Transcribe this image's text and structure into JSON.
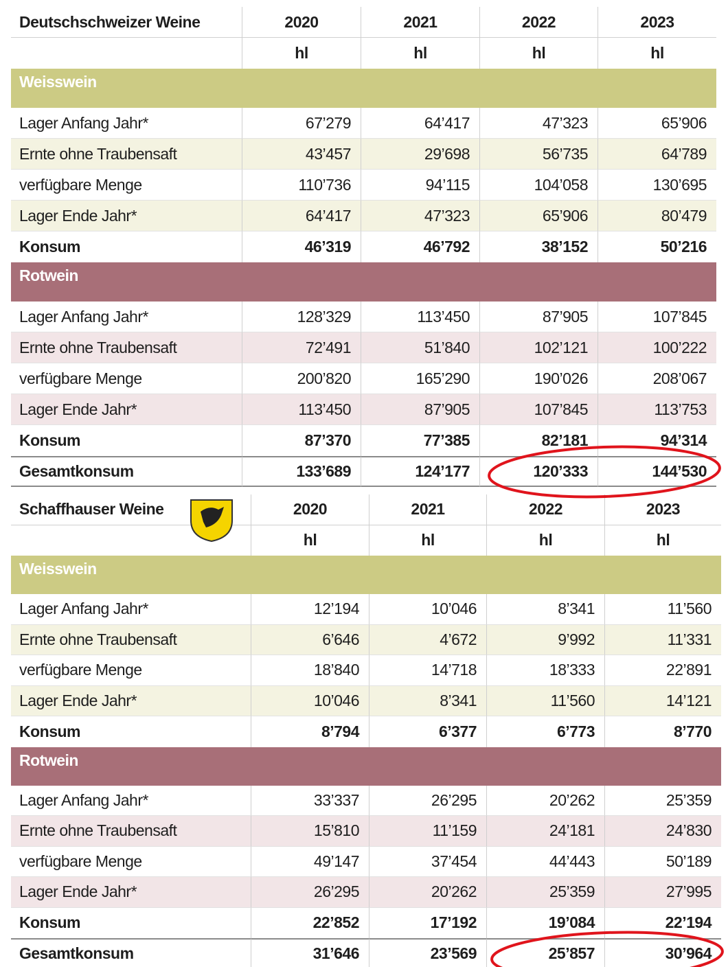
{
  "tables": [
    {
      "title": "Deutschschweizer Weine",
      "years": [
        "2020",
        "2021",
        "2022",
        "2023"
      ],
      "units": [
        "hl",
        "hl",
        "hl",
        "hl"
      ],
      "sections": [
        {
          "name": "Weisswein",
          "rows": [
            {
              "label": "Lager Anfang Jahr*",
              "values": [
                "67’279",
                "64’417",
                "47’323",
                "65’906"
              ]
            },
            {
              "label": "Ernte ohne Traubensaft",
              "values": [
                "43’457",
                "29’698",
                "56’735",
                "64’789"
              ]
            },
            {
              "label": "verfügbare Menge",
              "values": [
                "110’736",
                "94’115",
                "104’058",
                "130’695"
              ]
            },
            {
              "label": "Lager Ende Jahr*",
              "values": [
                "64’417",
                "47’323",
                "65’906",
                "80’479"
              ]
            },
            {
              "label": "Konsum",
              "values": [
                "46’319",
                "46’792",
                "38’152",
                "50’216"
              ]
            }
          ]
        },
        {
          "name": "Rotwein",
          "rows": [
            {
              "label": "Lager Anfang Jahr*",
              "values": [
                "128’329",
                "113’450",
                "87’905",
                "107’845"
              ]
            },
            {
              "label": "Ernte ohne Traubensaft",
              "values": [
                "72’491",
                "51’840",
                "102’121",
                "100’222"
              ]
            },
            {
              "label": "verfügbare Menge",
              "values": [
                "200’820",
                "165’290",
                "190’026",
                "208’067"
              ]
            },
            {
              "label": "Lager Ende Jahr*",
              "values": [
                "113’450",
                "87’905",
                "107’845",
                "113’753"
              ]
            },
            {
              "label": "Konsum",
              "values": [
                "87’370",
                "77’385",
                "82’181",
                "94’314"
              ]
            }
          ]
        }
      ],
      "total": {
        "label": "Gesamtkonsum",
        "values": [
          "133’689",
          "124’177",
          "120’333",
          "144’530"
        ]
      }
    },
    {
      "title": "Schaffhauser Weine",
      "years": [
        "2020",
        "2021",
        "2022",
        "2023"
      ],
      "units": [
        "hl",
        "hl",
        "hl",
        "hl"
      ],
      "sections": [
        {
          "name": "Weisswein",
          "rows": [
            {
              "label": "Lager Anfang Jahr*",
              "values": [
                "12’194",
                "10’046",
                "8’341",
                "11’560"
              ]
            },
            {
              "label": "Ernte ohne Traubensaft",
              "values": [
                "6’646",
                "4’672",
                "9’992",
                "11’331"
              ]
            },
            {
              "label": "verfügbare Menge",
              "values": [
                "18’840",
                "14’718",
                "18’333",
                "22’891"
              ]
            },
            {
              "label": "Lager Ende Jahr*",
              "values": [
                "10’046",
                "8’341",
                "11’560",
                "14’121"
              ]
            },
            {
              "label": "Konsum",
              "values": [
                "8’794",
                "6’377",
                "6’773",
                "8’770"
              ]
            }
          ]
        },
        {
          "name": "Rotwein",
          "rows": [
            {
              "label": "Lager Anfang Jahr*",
              "values": [
                "33’337",
                "26’295",
                "20’262",
                "25’359"
              ]
            },
            {
              "label": "Ernte ohne Traubensaft",
              "values": [
                "15’810",
                "11’159",
                "24’181",
                "24’830"
              ]
            },
            {
              "label": "verfügbare Menge",
              "values": [
                "49’147",
                "37’454",
                "44’443",
                "50’189"
              ]
            },
            {
              "label": "Lager Ende Jahr*",
              "values": [
                "26’295",
                "20’262",
                "25’359",
                "27’995"
              ]
            },
            {
              "label": "Konsum",
              "values": [
                "22’852",
                "17’192",
                "19’084",
                "22’194"
              ]
            }
          ]
        }
      ],
      "total": {
        "label": "Gesamtkonsum",
        "values": [
          "31’646",
          "23’569",
          "25’857",
          "30’964"
        ]
      }
    }
  ]
}
